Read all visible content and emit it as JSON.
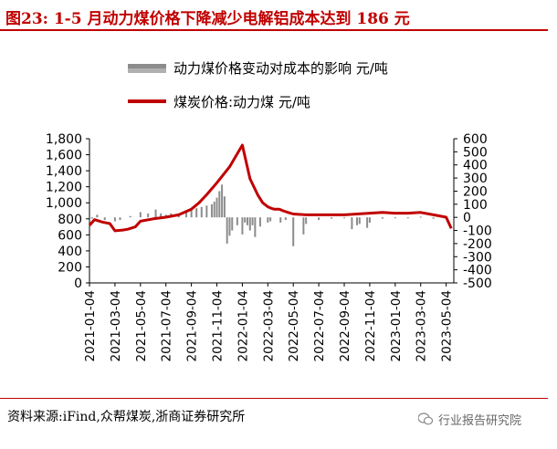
{
  "header": {
    "title": "图23:   1-5 月动力煤价格下降减少电解铝成本达到 186 元"
  },
  "footer": {
    "source": "资料来源:iFind,众帮煤炭,浙商证券研究所",
    "watermark": "行业报告研究院"
  },
  "colors": {
    "accent": "#c00000",
    "bar": "#8c8c8c"
  },
  "chart_data": {
    "type": "line",
    "title": "",
    "legend": [
      {
        "label": "动力煤价格变动对成本的影响 元/吨",
        "kind": "bar",
        "axis": "right"
      },
      {
        "label": "煤炭价格:动力煤 元/吨",
        "kind": "line",
        "axis": "left"
      }
    ],
    "left_axis": {
      "min": 0,
      "max": 1800,
      "ticks": [
        "0",
        "200",
        "400",
        "600",
        "800",
        "1,000",
        "1,200",
        "1,400",
        "1,600",
        "1,800"
      ]
    },
    "right_axis": {
      "min": -500,
      "max": 600,
      "ticks": [
        "-500",
        "-400",
        "-300",
        "-200",
        "-100",
        "0",
        "100",
        "200",
        "300",
        "400",
        "500",
        "600"
      ]
    },
    "x_labels": [
      "2021-01-04",
      "2021-03-04",
      "2021-05-04",
      "2021-07-04",
      "2021-09-04",
      "2021-11-04",
      "2022-01-04",
      "2022-03-04",
      "2022-05-04",
      "2022-07-04",
      "2022-09-04",
      "2022-11-04",
      "2023-01-04",
      "2023-03-04",
      "2023-05-04"
    ],
    "series": [
      {
        "name": "煤炭价格:动力煤 元/吨",
        "axis": "left",
        "x": [
          0,
          0.2,
          0.5,
          0.8,
          1.0,
          1.3,
          1.5,
          1.8,
          2.0,
          2.5,
          3.0,
          3.5,
          4.0,
          4.3,
          4.6,
          5.0,
          5.5,
          6.0,
          6.3,
          6.6,
          6.8,
          7.0,
          7.15,
          7.25,
          7.35,
          7.45,
          7.6,
          7.8,
          8.0,
          8.5,
          9.0,
          9.5,
          10.0,
          10.5,
          11.0,
          11.5,
          12.0,
          12.5,
          13.0,
          13.5,
          14.0,
          14.2
        ],
        "values": [
          720,
          790,
          760,
          740,
          650,
          660,
          670,
          700,
          770,
          800,
          820,
          850,
          920,
          1000,
          1100,
          1250,
          1450,
          1720,
          1300,
          1100,
          1000,
          950,
          930,
          920,
          920,
          920,
          900,
          880,
          860,
          850,
          850,
          850,
          850,
          860,
          870,
          880,
          870,
          870,
          880,
          850,
          820,
          680
        ]
      },
      {
        "name": "动力煤价格变动对成本的影响 元/吨",
        "axis": "right",
        "type": "bar",
        "x": [
          0.1,
          0.3,
          0.6,
          1.0,
          1.2,
          1.6,
          2.0,
          2.3,
          2.6,
          2.8,
          3.0,
          3.2,
          3.5,
          3.8,
          4.0,
          4.2,
          4.4,
          4.6,
          4.8,
          4.9,
          5.0,
          5.1,
          5.2,
          5.3,
          5.4,
          5.5,
          5.6,
          5.8,
          6.0,
          6.1,
          6.2,
          6.3,
          6.4,
          6.5,
          6.7,
          7.0,
          7.1,
          7.5,
          7.7,
          8.0,
          8.4,
          8.5,
          9.0,
          9.5,
          10.0,
          10.3,
          10.5,
          10.6,
          10.9,
          11.0,
          11.5,
          12.0,
          12.5,
          13.0,
          13.5
        ],
        "values": [
          -10,
          20,
          -20,
          -30,
          -20,
          10,
          40,
          30,
          60,
          30,
          20,
          30,
          20,
          40,
          60,
          70,
          80,
          90,
          100,
          120,
          150,
          200,
          250,
          160,
          -200,
          -140,
          -100,
          -60,
          -130,
          -40,
          -60,
          -100,
          -60,
          -150,
          -70,
          -40,
          -30,
          -40,
          -20,
          -220,
          -130,
          -50,
          -20,
          -10,
          -5,
          -90,
          -60,
          -50,
          -80,
          -40,
          -10,
          -5,
          0,
          5,
          -10
        ]
      }
    ]
  }
}
